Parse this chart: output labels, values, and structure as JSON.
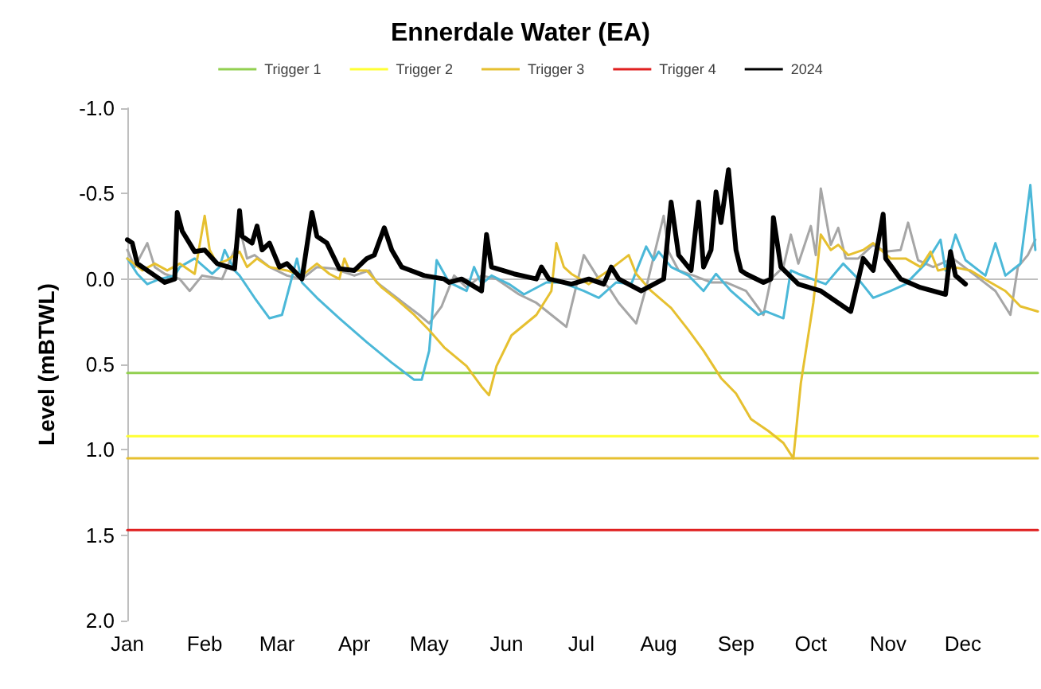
{
  "chart_data": {
    "type": "line",
    "title": "Ennerdale Water (EA)",
    "ylabel": "Level (mBTWL)",
    "xlim": [
      "--01-01",
      "--12-31"
    ],
    "xticks": [
      {
        "value": "--01-01",
        "label": "Jan"
      },
      {
        "value": "--02-01",
        "label": "Feb"
      },
      {
        "value": "--03-01",
        "label": "Mar"
      },
      {
        "value": "--04-01",
        "label": "Apr"
      },
      {
        "value": "--05-01",
        "label": "May"
      },
      {
        "value": "--06-01",
        "label": "Jun"
      },
      {
        "value": "--07-01",
        "label": "Jul"
      },
      {
        "value": "--08-01",
        "label": "Aug"
      },
      {
        "value": "--09-01",
        "label": "Sep"
      },
      {
        "value": "--10-01",
        "label": "Oct"
      },
      {
        "value": "--11-01",
        "label": "Nov"
      },
      {
        "value": "--12-01",
        "label": "Dec"
      }
    ],
    "ylim": [
      2,
      -1
    ],
    "yticks": [
      {
        "value": -1,
        "label": "-1.0"
      },
      {
        "value": -0.5,
        "label": "-0.5"
      },
      {
        "value": 0,
        "label": "0.0"
      },
      {
        "value": 0.5,
        "label": "0.5"
      },
      {
        "value": 1,
        "label": "1.0"
      },
      {
        "value": 1.5,
        "label": "1.5"
      },
      {
        "value": 2,
        "label": "2.0"
      }
    ],
    "grid": false,
    "legend": "top",
    "marker": "none",
    "line_style": "solid",
    "ref_lines": [
      {
        "axis": "y",
        "value": 0,
        "color": "#bfbfbf"
      }
    ],
    "series": [
      {
        "name": "Trigger 1",
        "color": "#92d050",
        "x": [
          "--01-01",
          "--12-31"
        ],
        "values": [
          0.55,
          0.55
        ]
      },
      {
        "name": "Trigger 2",
        "color": "#ffff33",
        "x": [
          "--01-01",
          "--12-31"
        ],
        "values": [
          0.92,
          0.92
        ]
      },
      {
        "name": "Trigger 3",
        "color": "#e6c030",
        "x": [
          "--01-01",
          "--12-31"
        ],
        "values": [
          1.05,
          1.05
        ]
      },
      {
        "name": "Trigger 4",
        "color": "#e02020",
        "x": [
          "--01-01",
          "--12-31"
        ],
        "values": [
          1.47,
          1.47
        ]
      },
      {
        "color": "#a6a6a6",
        "x": [
          "--01-01",
          "--01-04",
          "--01-09",
          "--01-12",
          "--01-16",
          "--01-22",
          "--01-26",
          "--01-31",
          "--02-08",
          "--02-13",
          "--02-15",
          "--02-18",
          "--02-21",
          "--02-27",
          "--03-05",
          "--03-11",
          "--03-17",
          "--03-24",
          "--04-01",
          "--04-07",
          "--04-10",
          "--04-18",
          "--04-27",
          "--05-01",
          "--05-06",
          "--05-09",
          "--05-11",
          "--05-16",
          "--05-22",
          "--05-28",
          "--06-06",
          "--06-13",
          "--06-19",
          "--06-25",
          "--07-02",
          "--07-08",
          "--07-12",
          "--07-16",
          "--07-23",
          "--07-27",
          "--08-03",
          "--08-05",
          "--08-09",
          "--08-15",
          "--08-22",
          "--08-28",
          "--09-05",
          "--09-12",
          "--09-15",
          "--09-20",
          "--09-23",
          "--09-26",
          "--10-01",
          "--10-03",
          "--10-05",
          "--10-09",
          "--10-12",
          "--10-15",
          "--10-20",
          "--10-26",
          "--10-31",
          "--11-06",
          "--11-09",
          "--11-13",
          "--11-19",
          "--11-27",
          "--12-06",
          "--12-14",
          "--12-20",
          "--12-23",
          "--12-27",
          "--12-30"
        ],
        "values": [
          -0.17,
          -0.07,
          -0.21,
          -0.07,
          -0.03,
          0,
          0.07,
          -0.02,
          0,
          -0.17,
          -0.3,
          -0.12,
          -0.14,
          -0.07,
          -0.02,
          0,
          -0.07,
          -0.06,
          -0.02,
          -0.05,
          0.02,
          0.11,
          0.21,
          0.26,
          0.16,
          0.05,
          -0.02,
          0.05,
          -0.02,
          0,
          0.09,
          0.14,
          0.21,
          0.28,
          -0.14,
          0,
          0.05,
          0.14,
          0.26,
          0.05,
          -0.37,
          -0.16,
          -0.05,
          -0.02,
          0.02,
          0.02,
          0.07,
          0.21,
          0,
          -0.07,
          -0.26,
          -0.09,
          -0.31,
          -0.14,
          -0.53,
          -0.2,
          -0.3,
          -0.12,
          -0.12,
          -0.2,
          -0.16,
          -0.17,
          -0.33,
          -0.11,
          -0.07,
          -0.12,
          -0.02,
          0.07,
          0.21,
          -0.07,
          -0.14,
          -0.23
        ]
      },
      {
        "color": "#4bb8d8",
        "x": [
          "--01-01",
          "--01-05",
          "--01-09",
          "--01-14",
          "--01-20",
          "--01-22",
          "--01-28",
          "--02-04",
          "--02-07",
          "--02-09",
          "--02-13",
          "--02-15",
          "--02-21",
          "--02-27",
          "--03-03",
          "--03-09",
          "--03-11",
          "--03-17",
          "--03-26",
          "--04-06",
          "--04-16",
          "--04-25",
          "--04-28",
          "--05-01",
          "--05-04",
          "--05-09",
          "--05-16",
          "--05-19",
          "--05-22",
          "--05-26",
          "--06-02",
          "--06-08",
          "--06-17",
          "--06-23",
          "--07-02",
          "--07-08",
          "--07-15",
          "--07-21",
          "--07-27",
          "--07-30",
          "--08-01",
          "--08-06",
          "--08-13",
          "--08-19",
          "--08-24",
          "--08-30",
          "--09-10",
          "--09-13",
          "--09-20",
          "--09-23",
          "--09-26",
          "--10-07",
          "--10-14",
          "--10-20",
          "--10-26",
          "--11-02",
          "--11-08",
          "--11-16",
          "--11-22",
          "--11-24",
          "--11-28",
          "--12-02",
          "--12-10",
          "--12-14",
          "--12-18",
          "--12-24",
          "--12-28",
          "--12-30"
        ],
        "values": [
          -0.12,
          -0.03,
          0.03,
          0,
          -0.02,
          -0.07,
          -0.12,
          -0.03,
          -0.07,
          -0.17,
          -0.05,
          -0.02,
          0.11,
          0.23,
          0.21,
          -0.12,
          0.02,
          0.11,
          0.23,
          0.37,
          0.49,
          0.59,
          0.59,
          0.42,
          -0.11,
          0.02,
          0.07,
          -0.07,
          0.03,
          -0.02,
          0.03,
          0.09,
          0.02,
          0.02,
          0.07,
          0.11,
          0.02,
          0.03,
          -0.19,
          -0.11,
          -0.16,
          -0.07,
          -0.02,
          0.07,
          -0.03,
          0.07,
          0.21,
          0.19,
          0.23,
          -0.05,
          -0.03,
          0.03,
          -0.09,
          0,
          0.11,
          0.07,
          0.03,
          -0.09,
          -0.23,
          -0.05,
          -0.26,
          -0.11,
          -0.02,
          -0.21,
          -0.02,
          -0.09,
          -0.55,
          -0.17
        ]
      },
      {
        "color": "#e6c030",
        "x": [
          "--01-01",
          "--01-07",
          "--01-12",
          "--01-17",
          "--01-22",
          "--01-28",
          "--02-01",
          "--02-03",
          "--02-06",
          "--02-10",
          "--02-15",
          "--02-18",
          "--02-22",
          "--02-27",
          "--03-05",
          "--03-11",
          "--03-17",
          "--03-22",
          "--03-26",
          "--03-28",
          "--03-30",
          "--04-06",
          "--04-12",
          "--04-18",
          "--04-25",
          "--05-01",
          "--05-07",
          "--05-16",
          "--05-22",
          "--05-25",
          "--05-28",
          "--06-03",
          "--06-13",
          "--06-19",
          "--06-21",
          "--06-24",
          "--06-27",
          "--07-04",
          "--07-12",
          "--07-20",
          "--07-23",
          "--07-29",
          "--08-06",
          "--08-13",
          "--08-19",
          "--08-26",
          "--09-01",
          "--09-07",
          "--09-14",
          "--09-20",
          "--09-24",
          "--09-27",
          "--10-02",
          "--10-05",
          "--10-09",
          "--10-12",
          "--10-16",
          "--10-22",
          "--10-26",
          "--11-02",
          "--11-08",
          "--11-14",
          "--11-18",
          "--11-21",
          "--11-27",
          "--12-04",
          "--12-12",
          "--12-18",
          "--12-24",
          "--12-31"
        ],
        "values": [
          -0.12,
          -0.05,
          -0.09,
          -0.05,
          -0.09,
          -0.03,
          -0.37,
          -0.17,
          -0.09,
          -0.11,
          -0.16,
          -0.07,
          -0.12,
          -0.07,
          -0.05,
          -0.02,
          -0.09,
          -0.03,
          0,
          -0.12,
          -0.05,
          -0.05,
          0.05,
          0.12,
          0.21,
          0.3,
          0.4,
          0.51,
          0.63,
          0.68,
          0.51,
          0.33,
          0.21,
          0.07,
          -0.21,
          -0.07,
          -0.03,
          0.03,
          -0.05,
          -0.14,
          -0.03,
          0.07,
          0.17,
          0.3,
          0.42,
          0.58,
          0.67,
          0.82,
          0.89,
          0.96,
          1.05,
          0.61,
          0.14,
          -0.26,
          -0.17,
          -0.2,
          -0.14,
          -0.17,
          -0.21,
          -0.12,
          -0.12,
          -0.07,
          -0.16,
          -0.05,
          -0.07,
          -0.05,
          0.02,
          0.07,
          0.16,
          0.19
        ]
      },
      {
        "name": "2024",
        "color": "#000000",
        "x": [
          "--01-01",
          "--01-03",
          "--01-05",
          "--01-12",
          "--01-16",
          "--01-20",
          "--01-21",
          "--01-23",
          "--01-28",
          "--02-01",
          "--02-06",
          "--02-13",
          "--02-15",
          "--02-16",
          "--02-20",
          "--02-22",
          "--02-24",
          "--02-27",
          "--03-02",
          "--03-05",
          "--03-11",
          "--03-15",
          "--03-17",
          "--03-21",
          "--03-26",
          "--04-01",
          "--04-06",
          "--04-09",
          "--04-13",
          "--04-16",
          "--04-20",
          "--04-29",
          "--05-07",
          "--05-09",
          "--05-14",
          "--05-22",
          "--05-24",
          "--05-26",
          "--06-04",
          "--06-13",
          "--06-15",
          "--06-18",
          "--06-27",
          "--07-04",
          "--07-10",
          "--07-13",
          "--07-16",
          "--07-25",
          "--08-03",
          "--08-06",
          "--08-09",
          "--08-14",
          "--08-17",
          "--08-19",
          "--08-22",
          "--08-24",
          "--08-26",
          "--08-29",
          "--09-01",
          "--09-03",
          "--09-05",
          "--09-12",
          "--09-15",
          "--09-16",
          "--09-19",
          "--09-26",
          "--10-05",
          "--10-12",
          "--10-17",
          "--10-22",
          "--10-26",
          "--10-30",
          "--10-31",
          "--11-06",
          "--11-14",
          "--11-24",
          "--11-26",
          "--11-28",
          "--12-02"
        ],
        "values": [
          -0.23,
          -0.21,
          -0.09,
          -0.02,
          0.02,
          0,
          -0.39,
          -0.28,
          -0.16,
          -0.17,
          -0.09,
          -0.06,
          -0.4,
          -0.25,
          -0.21,
          -0.31,
          -0.17,
          -0.21,
          -0.07,
          -0.09,
          0,
          -0.39,
          -0.25,
          -0.21,
          -0.06,
          -0.05,
          -0.12,
          -0.14,
          -0.3,
          -0.17,
          -0.07,
          -0.02,
          0,
          0.02,
          0,
          0.07,
          -0.26,
          -0.07,
          -0.03,
          0,
          -0.07,
          0,
          0.03,
          0,
          0.03,
          -0.07,
          0,
          0.07,
          0,
          -0.45,
          -0.14,
          -0.05,
          -0.45,
          -0.07,
          -0.17,
          -0.51,
          -0.33,
          -0.64,
          -0.17,
          -0.05,
          -0.03,
          0.02,
          0,
          -0.36,
          -0.07,
          0.03,
          0.07,
          0.14,
          0.19,
          -0.12,
          -0.05,
          -0.38,
          -0.12,
          0,
          0.05,
          0.09,
          -0.16,
          -0.02,
          0.03
        ]
      }
    ]
  }
}
